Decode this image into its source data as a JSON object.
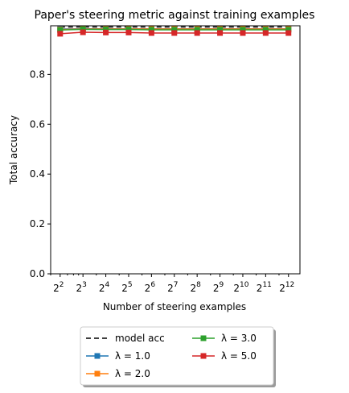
{
  "chart_data": {
    "type": "line",
    "title": "Paper's steering metric against training examples",
    "xlabel": "Number of steering examples",
    "ylabel": "Total accuracy",
    "x_scale": "log2",
    "x": [
      4,
      8,
      16,
      32,
      64,
      128,
      256,
      512,
      1024,
      2048,
      4096
    ],
    "x_tick_labels": [
      {
        "base": "2",
        "exp": "2"
      },
      {
        "base": "2",
        "exp": "3"
      },
      {
        "base": "2",
        "exp": "4"
      },
      {
        "base": "2",
        "exp": "5"
      },
      {
        "base": "2",
        "exp": "6"
      },
      {
        "base": "2",
        "exp": "7"
      },
      {
        "base": "2",
        "exp": "8"
      },
      {
        "base": "2",
        "exp": "9"
      },
      {
        "base": "2",
        "exp": "10"
      },
      {
        "base": "2",
        "exp": "11"
      },
      {
        "base": "2",
        "exp": "12"
      }
    ],
    "xlim": [
      3.0,
      5800
    ],
    "ylim": [
      0.0,
      0.995
    ],
    "y_ticks": [
      "0.0",
      "0.2",
      "0.4",
      "0.6",
      "0.8"
    ],
    "grid": false,
    "legend_placement": "below-center",
    "reference_line": {
      "name": "model acc",
      "value": 0.99,
      "color": "#000000",
      "style": "dashed"
    },
    "series": [
      {
        "name": "λ = 1.0",
        "color": "#1f77b4",
        "marker": "square",
        "values": [
          0.982,
          0.983,
          0.983,
          0.983,
          0.983,
          0.983,
          0.983,
          0.983,
          0.983,
          0.983,
          0.983
        ]
      },
      {
        "name": "λ = 2.0",
        "color": "#ff7f0e",
        "marker": "square",
        "values": [
          0.98,
          0.982,
          0.982,
          0.982,
          0.982,
          0.982,
          0.982,
          0.982,
          0.982,
          0.982,
          0.982
        ]
      },
      {
        "name": "λ = 3.0",
        "color": "#2ca02c",
        "marker": "square",
        "values": [
          0.978,
          0.981,
          0.98,
          0.98,
          0.979,
          0.979,
          0.979,
          0.979,
          0.979,
          0.979,
          0.979
        ]
      },
      {
        "name": "λ = 5.0",
        "color": "#d62728",
        "marker": "square",
        "values": [
          0.963,
          0.969,
          0.968,
          0.968,
          0.966,
          0.966,
          0.966,
          0.966,
          0.966,
          0.966,
          0.966
        ]
      }
    ]
  }
}
